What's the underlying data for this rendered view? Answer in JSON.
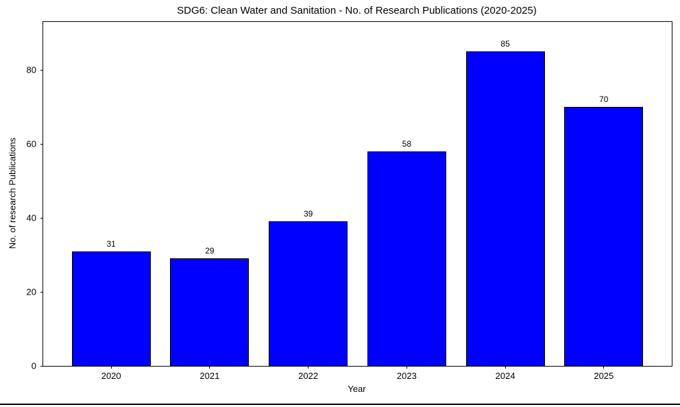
{
  "figure": {
    "title": "SDG6: Clean Water and Sanitation - No. of Research Publications (2020-2025)",
    "x_axis_label": "Year",
    "y_axis_label": "No. of research Publications"
  },
  "chart_data": {
    "type": "bar",
    "title": "SDG6: Clean Water and Sanitation - No. of Research Publications (2020-2025)",
    "xlabel": "Year",
    "ylabel": "No. of research Publications",
    "categories": [
      "2020",
      "2021",
      "2022",
      "2023",
      "2024",
      "2025"
    ],
    "values": [
      31,
      29,
      39,
      58,
      85,
      70
    ],
    "bar_value_labels": [
      "31",
      "29",
      "39",
      "58",
      "85",
      "70"
    ],
    "yticks": [
      0,
      20,
      40,
      60,
      80
    ],
    "ylim": [
      0,
      93
    ],
    "xlim": [
      -0.69,
      5.69
    ],
    "bar_width_units": 0.8,
    "grid": false,
    "legend": "none",
    "bar_color": "#0000ff",
    "bar_edge_color": "#000000",
    "axis_color": "#000000",
    "text_color": "#000000",
    "background_color": "#ffffff"
  }
}
